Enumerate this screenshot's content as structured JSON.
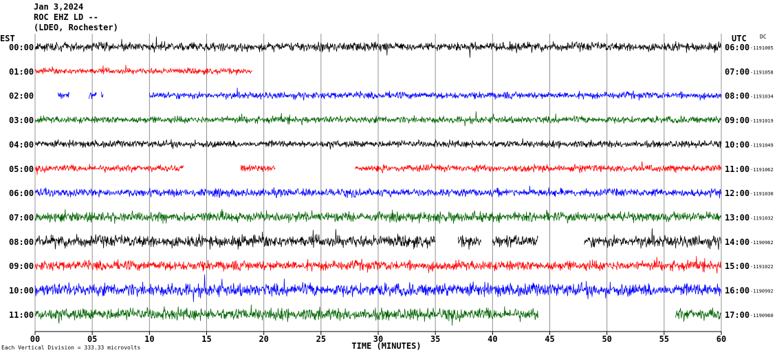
{
  "header": {
    "date": "Jan 3,2024",
    "station": "ROC EHZ LD --",
    "network": "(LDEO, Rochester)"
  },
  "left_axis_label": "EST",
  "right_axis_label": "UTC",
  "dc_label": "DC",
  "footnote": "Each Vertical Division = 333.33 microvolts",
  "chart_data": {
    "type": "line",
    "title": "",
    "xlabel": "TIME (MINUTES)",
    "xlim": [
      0,
      60
    ],
    "x_ticks": [
      "00",
      "05",
      "10",
      "15",
      "20",
      "25",
      "30",
      "35",
      "40",
      "45",
      "50",
      "55",
      "60"
    ],
    "grid": true,
    "traces": [
      {
        "est": "00:00",
        "utc": "06:00",
        "dc": "-1191005",
        "color": "#000000",
        "segments": [
          [
            0,
            60
          ]
        ],
        "amplitude": 0.9
      },
      {
        "est": "01:00",
        "utc": "07:00",
        "dc": "-1191058",
        "color": "#ff0000",
        "segments": [
          [
            0,
            19
          ]
        ],
        "amplitude": 0.6
      },
      {
        "est": "02:00",
        "utc": "08:00",
        "dc": "-1191034",
        "color": "#0000ff",
        "segments": [
          [
            2,
            3
          ],
          [
            4.7,
            5.4
          ],
          [
            5.8,
            6
          ],
          [
            10,
            60
          ]
        ],
        "amplitude": 0.7
      },
      {
        "est": "03:00",
        "utc": "09:00",
        "dc": "-1191019",
        "color": "#006400",
        "segments": [
          [
            0,
            60
          ]
        ],
        "amplitude": 0.7
      },
      {
        "est": "04:00",
        "utc": "10:00",
        "dc": "-1191049",
        "color": "#000000",
        "segments": [
          [
            0,
            60
          ]
        ],
        "amplitude": 0.7
      },
      {
        "est": "05:00",
        "utc": "11:00",
        "dc": "-1191062",
        "color": "#ff0000",
        "segments": [
          [
            0,
            13
          ],
          [
            18,
            21
          ],
          [
            28,
            60
          ]
        ],
        "amplitude": 0.7
      },
      {
        "est": "06:00",
        "utc": "12:00",
        "dc": "-1191030",
        "color": "#0000ff",
        "segments": [
          [
            0,
            60
          ]
        ],
        "amplitude": 0.8
      },
      {
        "est": "07:00",
        "utc": "13:00",
        "dc": "-1191032",
        "color": "#006400",
        "segments": [
          [
            0,
            60
          ]
        ],
        "amplitude": 1.0
      },
      {
        "est": "08:00",
        "utc": "14:00",
        "dc": "-1190962",
        "color": "#000000",
        "segments": [
          [
            0,
            35
          ],
          [
            37,
            39
          ],
          [
            40,
            44
          ],
          [
            48,
            60
          ]
        ],
        "amplitude": 1.2
      },
      {
        "est": "09:00",
        "utc": "15:00",
        "dc": "-1191022",
        "color": "#ff0000",
        "segments": [
          [
            0,
            60
          ]
        ],
        "amplitude": 1.0
      },
      {
        "est": "10:00",
        "utc": "16:00",
        "dc": "-1190992",
        "color": "#0000ff",
        "segments": [
          [
            0,
            60
          ]
        ],
        "amplitude": 1.3
      },
      {
        "est": "11:00",
        "utc": "17:00",
        "dc": "-1190960",
        "color": "#006400",
        "segments": [
          [
            0,
            44
          ],
          [
            56,
            60
          ]
        ],
        "amplitude": 1.2
      }
    ]
  }
}
